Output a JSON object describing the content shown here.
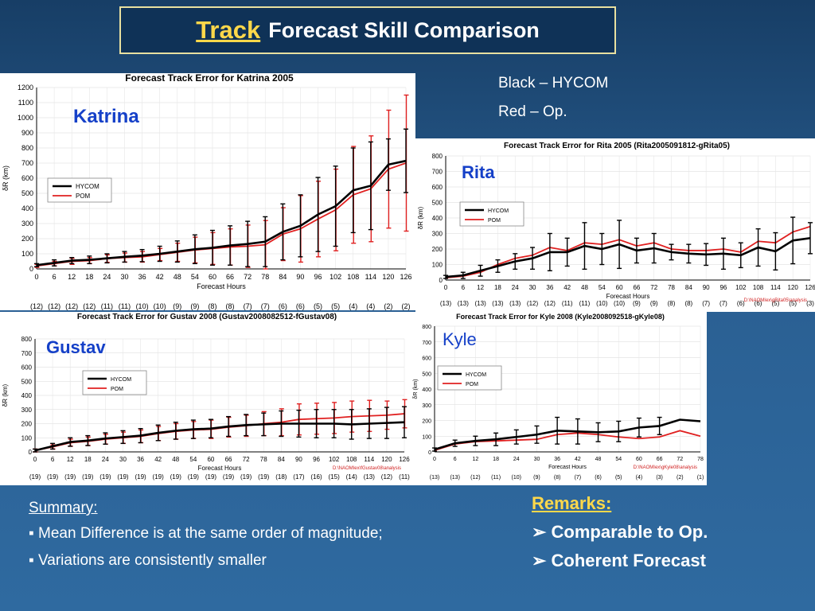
{
  "slide": {
    "title_highlight": "Track",
    "title_rest": "Forecast Skill Comparison",
    "legend_black": "Black – HYCOM",
    "legend_red": "Red – Op.",
    "summary_title": "Summary:",
    "summary_items": [
      "▪ Mean Difference is at the same order of magnitude;",
      "▪ Variations are consistently smaller"
    ],
    "remarks_title": "Remarks:",
    "remarks_items": [
      "➢ Comparable to Op.",
      "➢ Coherent Forecast"
    ]
  },
  "chart_data": [
    {
      "type": "line",
      "storm": "Katrina",
      "storm_color": "#1540c8",
      "title": "Forecast Track Error for Katrina 2005",
      "xlabel": "Forecast Hours",
      "ylabel": "δR (km)",
      "ylim": [
        0,
        1200
      ],
      "ytick_step": 100,
      "xlim": [
        0,
        126
      ],
      "x": [
        0,
        6,
        12,
        18,
        24,
        30,
        36,
        42,
        48,
        54,
        60,
        66,
        72,
        78,
        84,
        90,
        96,
        102,
        108,
        114,
        120,
        126
      ],
      "counts": [
        "(12)",
        "(12)",
        "(12)",
        "(12)",
        "(11)",
        "(11)",
        "(10)",
        "(10)",
        "(9)",
        "(9)",
        "(8)",
        "(8)",
        "(7)",
        "(7)",
        "(6)",
        "(6)",
        "(5)",
        "(5)",
        "(4)",
        "(4)",
        "(2)",
        "(2)"
      ],
      "legend_position": "left",
      "legend_labels": [
        "HYCOM",
        "POM"
      ],
      "path_note": "",
      "series": [
        {
          "name": "HYCOM",
          "color": "#000000",
          "values": [
            25,
            40,
            55,
            60,
            70,
            80,
            88,
            100,
            115,
            130,
            140,
            155,
            165,
            180,
            245,
            285,
            360,
            415,
            520,
            550,
            690,
            715
          ],
          "err": [
            10,
            20,
            20,
            25,
            30,
            35,
            40,
            50,
            70,
            95,
            115,
            130,
            150,
            165,
            185,
            205,
            245,
            265,
            280,
            290,
            170,
            210
          ]
        },
        {
          "name": "POM",
          "color": "#e02020",
          "values": [
            20,
            35,
            50,
            55,
            68,
            75,
            80,
            95,
            110,
            125,
            135,
            145,
            150,
            160,
            230,
            265,
            330,
            390,
            490,
            530,
            660,
            700
          ],
          "err": [
            10,
            15,
            20,
            20,
            25,
            30,
            35,
            40,
            60,
            85,
            105,
            120,
            140,
            160,
            175,
            220,
            250,
            270,
            320,
            350,
            390,
            450
          ]
        }
      ]
    },
    {
      "type": "line",
      "storm": "Rita",
      "storm_color": "#1540c8",
      "title": "Forecast Track Error for Rita 2005 (Rita2005091812-gRita05)",
      "xlabel": "Forecast Hours",
      "ylabel": "δR (km)",
      "ylim": [
        0,
        800
      ],
      "ytick_step": 100,
      "xlim": [
        0,
        126
      ],
      "x": [
        0,
        6,
        12,
        18,
        24,
        30,
        36,
        42,
        48,
        54,
        60,
        66,
        72,
        78,
        84,
        90,
        96,
        102,
        108,
        114,
        120,
        126
      ],
      "counts": [
        "(13)",
        "(13)",
        "(13)",
        "(13)",
        "(13)",
        "(12)",
        "(12)",
        "(11)",
        "(11)",
        "(10)",
        "(10)",
        "(9)",
        "(9)",
        "(8)",
        "(8)",
        "(7)",
        "(7)",
        "(6)",
        "(6)",
        "(5)",
        "(5)",
        "(3)"
      ],
      "legend_position": "left",
      "legend_labels": [
        "HYCOM",
        "POM"
      ],
      "path_note": "D:\\NAOMIex\\gRita05\\analysis",
      "series": [
        {
          "name": "HYCOM",
          "color": "#000000",
          "values": [
            20,
            30,
            60,
            90,
            120,
            140,
            180,
            180,
            220,
            200,
            230,
            190,
            205,
            180,
            170,
            165,
            170,
            160,
            210,
            185,
            255,
            270
          ],
          "err": [
            10,
            20,
            35,
            40,
            50,
            70,
            120,
            90,
            150,
            100,
            155,
            80,
            95,
            50,
            60,
            70,
            100,
            80,
            120,
            120,
            150,
            100
          ]
        },
        {
          "name": "POM",
          "color": "#e02020",
          "values": [
            15,
            25,
            50,
            100,
            140,
            160,
            210,
            190,
            240,
            230,
            260,
            220,
            240,
            200,
            190,
            190,
            200,
            180,
            250,
            240,
            310,
            345
          ]
        },
        "",
        ""
      ]
    },
    {
      "type": "line",
      "storm": "Gustav",
      "storm_color": "#1540c8",
      "title": "Forecast Track Error for Gustav 2008 (Gustav2008082512-fGustav08)",
      "xlabel": "Forecast Hours",
      "ylabel": "δR (km)",
      "ylim": [
        0,
        800
      ],
      "ytick_step": 100,
      "xlim": [
        0,
        126
      ],
      "x": [
        0,
        6,
        12,
        18,
        24,
        30,
        36,
        42,
        48,
        54,
        60,
        66,
        72,
        78,
        84,
        90,
        96,
        102,
        108,
        114,
        120,
        126
      ],
      "counts": [
        "(19)",
        "(19)",
        "(19)",
        "(19)",
        "(19)",
        "(19)",
        "(19)",
        "(19)",
        "(19)",
        "(19)",
        "(19)",
        "(19)",
        "(19)",
        "(19)",
        "(18)",
        "(17)",
        "(16)",
        "(15)",
        "(14)",
        "(13)",
        "(12)",
        "(11)"
      ],
      "legend_position": "left",
      "legend_labels": [
        "HYCOM",
        "POM"
      ],
      "path_note": "D:\\NAOMIex\\fGustav08\\analysis",
      "series": [
        {
          "name": "HYCOM",
          "color": "#000000",
          "values": [
            10,
            40,
            70,
            80,
            95,
            105,
            115,
            135,
            150,
            160,
            165,
            180,
            190,
            195,
            200,
            200,
            200,
            200,
            195,
            200,
            205,
            210
          ],
          "err": [
            10,
            20,
            30,
            35,
            40,
            45,
            50,
            55,
            60,
            65,
            65,
            70,
            75,
            80,
            90,
            95,
            100,
            100,
            105,
            105,
            110,
            110
          ]
        },
        {
          "name": "POM",
          "color": "#e02020",
          "values": [
            10,
            35,
            65,
            75,
            90,
            100,
            110,
            130,
            145,
            155,
            160,
            175,
            185,
            200,
            210,
            230,
            235,
            240,
            250,
            255,
            260,
            270
          ],
          "err": [
            10,
            15,
            25,
            30,
            35,
            40,
            45,
            50,
            55,
            60,
            65,
            70,
            75,
            85,
            95,
            110,
            110,
            110,
            110,
            110,
            100,
            100
          ]
        }
      ]
    },
    {
      "type": "line",
      "storm": "Kyle",
      "storm_color": "#1540c8",
      "title": "Forecast Track Error for Kyle 2008 (Kyle2008092518-gKyle08)",
      "xlabel": "Forecast Hours",
      "ylabel": "δR (km)",
      "ylim": [
        0,
        800
      ],
      "ytick_step": 100,
      "xlim": [
        0,
        78
      ],
      "x": [
        0,
        6,
        12,
        18,
        24,
        30,
        36,
        42,
        48,
        54,
        60,
        66,
        72,
        78
      ],
      "counts": [
        "(13)",
        "(13)",
        "(12)",
        "(11)",
        "(10)",
        "(9)",
        "(8)",
        "(7)",
        "(6)",
        "(5)",
        "(4)",
        "(3)",
        "(2)",
        "(1)"
      ],
      "legend_position": "left",
      "legend_labels": [
        "HYCOM",
        "POM"
      ],
      "path_note": "D:\\NAOMIex\\gKyle08\\analysis",
      "series": [
        {
          "name": "HYCOM",
          "color": "#000000",
          "values": [
            15,
            55,
            70,
            80,
            95,
            110,
            135,
            130,
            125,
            130,
            155,
            165,
            205,
            195
          ],
          "err": [
            10,
            20,
            30,
            40,
            45,
            55,
            85,
            80,
            60,
            65,
            60,
            55,
            0,
            0
          ]
        },
        {
          "name": "POM",
          "color": "#e02020",
          "values": [
            10,
            50,
            65,
            70,
            75,
            80,
            110,
            120,
            110,
            95,
            85,
            95,
            135,
            100
          ],
          "err": [
            0,
            0,
            0,
            0,
            0,
            0,
            0,
            0,
            0,
            0,
            0,
            0,
            0,
            0
          ]
        }
      ]
    }
  ]
}
